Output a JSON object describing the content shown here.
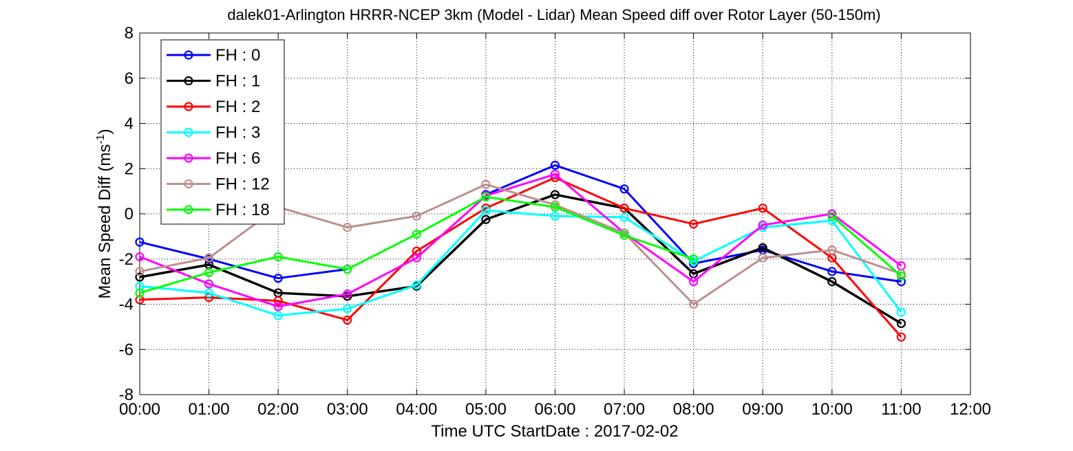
{
  "chart_data": {
    "type": "line",
    "title": "dalek01-Arlington HRRR-NCEP 3km (Model - Lidar) Mean Speed diff over Rotor Layer (50-150m)",
    "xlabel": "Time UTC    StartDate : 2017-02-02",
    "ylabel_main": "Mean Speed Diff (ms",
    "ylabel_sup": "-1",
    "ylabel_close": ")",
    "xticks": [
      "00:00",
      "01:00",
      "02:00",
      "03:00",
      "04:00",
      "05:00",
      "06:00",
      "07:00",
      "08:00",
      "09:00",
      "10:00",
      "11:00",
      "12:00"
    ],
    "yticks": [
      "-8",
      "-6",
      "-4",
      "-2",
      "0",
      "2",
      "4",
      "6",
      "8"
    ],
    "xlim": [
      0,
      12
    ],
    "ylim": [
      -8,
      8
    ],
    "grid": true,
    "legend_position": "top-left",
    "x": [
      0,
      1,
      2,
      3,
      4,
      5,
      6,
      7,
      8,
      9,
      10,
      11
    ],
    "series": [
      {
        "name": "FH : 0",
        "color": "#0000ff",
        "segments": [
          [
            0,
            1,
            2,
            3
          ],
          [
            5,
            6,
            7,
            8,
            9,
            10,
            11
          ]
        ],
        "values": [
          -1.25,
          -2.0,
          -2.85,
          -2.45,
          null,
          0.85,
          2.15,
          1.1,
          -2.2,
          -1.6,
          -2.55,
          -3.0
        ]
      },
      {
        "name": "FH : 1",
        "color": "#000000",
        "segments": [
          [
            0,
            1,
            2,
            3,
            4,
            5,
            6,
            7,
            8,
            9,
            10,
            11
          ]
        ],
        "values": [
          -2.8,
          -2.25,
          -3.5,
          -3.65,
          -3.2,
          -0.25,
          0.85,
          0.25,
          -2.65,
          -1.5,
          -3.0,
          -4.85
        ]
      },
      {
        "name": "FH : 2",
        "color": "#ff0000",
        "segments": [
          [
            0,
            1,
            2,
            3,
            4,
            5,
            6,
            7,
            8,
            9,
            10,
            11
          ]
        ],
        "values": [
          -3.8,
          -3.7,
          -3.85,
          -4.7,
          -1.65,
          0.25,
          1.6,
          0.25,
          -0.45,
          0.25,
          -1.95,
          -5.45
        ]
      },
      {
        "name": "FH : 3",
        "color": "#00ffff",
        "segments": [
          [
            0,
            1,
            2,
            3,
            4,
            5,
            6,
            7,
            8,
            9,
            10,
            11
          ]
        ],
        "values": [
          -3.2,
          -3.5,
          -4.5,
          -4.2,
          -3.15,
          0.15,
          -0.1,
          -0.15,
          -2.1,
          -0.6,
          -0.3,
          -4.35
        ]
      },
      {
        "name": "FH : 6",
        "color": "#ff00ff",
        "segments": [
          [
            0,
            1,
            2,
            3,
            4,
            5,
            6,
            7,
            8,
            9,
            10,
            11
          ]
        ],
        "values": [
          -1.9,
          -3.1,
          -4.1,
          -3.55,
          -1.95,
          0.8,
          1.75,
          -0.85,
          -3.0,
          -0.5,
          0.0,
          -2.3
        ]
      },
      {
        "name": "FH : 12",
        "color": "#bc8f8f",
        "segments": [
          [
            0,
            1,
            2,
            3,
            4,
            5,
            6,
            7,
            8,
            9,
            10,
            11
          ]
        ],
        "values": [
          -2.55,
          -1.95,
          0.3,
          -0.6,
          -0.1,
          1.3,
          0.4,
          -0.85,
          -4.0,
          -1.95,
          -1.6,
          -2.65
        ]
      },
      {
        "name": "FH : 18",
        "color": "#00ff00",
        "segments": [
          [
            0,
            1,
            2,
            3,
            4,
            5,
            6,
            7,
            8
          ],
          [
            10,
            11
          ]
        ],
        "values": [
          -3.5,
          -2.6,
          -1.9,
          -2.45,
          -0.9,
          0.75,
          0.3,
          -0.95,
          -2.0,
          null,
          -0.1,
          -2.75
        ]
      }
    ]
  }
}
